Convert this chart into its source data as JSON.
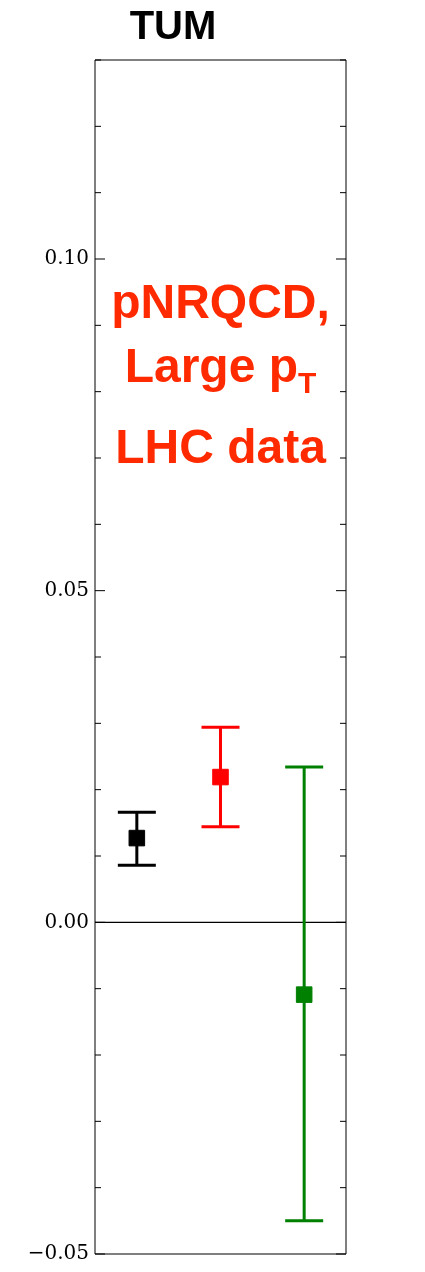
{
  "chart_data": {
    "type": "scatter",
    "title": "TUM",
    "categories": [
      null,
      null,
      null
    ],
    "values": [
      0.0127,
      0.0219,
      -0.0109
    ],
    "colors": [
      "#000000",
      "#ff0000",
      "#008000"
    ],
    "errors": [
      [
        0.0086,
        0.0166
      ],
      [
        0.0144,
        0.0294
      ],
      [
        -0.045,
        0.0234
      ]
    ],
    "marker": "square",
    "ylim": [
      -0.05,
      0.13
    ],
    "yticks": [
      {
        "value": -0.05,
        "label": "−0.05"
      },
      {
        "value": -0.04,
        "label": null
      },
      {
        "value": -0.03,
        "label": null
      },
      {
        "value": -0.02,
        "label": null
      },
      {
        "value": -0.01,
        "label": null
      },
      {
        "value": 0,
        "label": "0.00"
      },
      {
        "value": 0.01,
        "label": null
      },
      {
        "value": 0.02,
        "label": null
      },
      {
        "value": 0.03,
        "label": null
      },
      {
        "value": 0.04,
        "label": null
      },
      0.05,
      {
        "value": 0.06,
        "label": null
      },
      {
        "value": 0.07,
        "label": null
      },
      {
        "value": 0.08,
        "label": null
      },
      {
        "value": 0.09,
        "label": null
      },
      {
        "value": 0.1,
        "label": "0.10"
      },
      {
        "value": 0.11,
        "label": null
      },
      {
        "value": 0.12,
        "label": null
      },
      {
        "value": 0.13,
        "label": null
      }
    ],
    "ref_lines": [
      {
        "axis": "y",
        "value": 0,
        "color": "#000000"
      }
    ],
    "annotations": [
      "pNRQCD,",
      "Large p$_{T}$",
      "LHC data"
    ],
    "grid": false,
    "legend": false,
    "tick_labels": "y"
  }
}
